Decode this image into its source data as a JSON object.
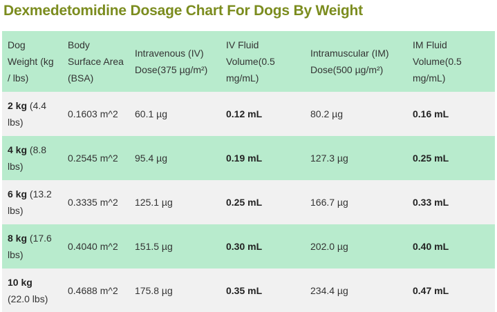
{
  "title": "Dexmedetomidine Dosage Chart For Dogs By Weight",
  "table": {
    "headers": [
      "Dog Weight (kg / lbs)",
      "Body Surface Area (BSA)",
      "Intravenous (IV) Dose(375 µg/m²)",
      "IV Fluid Volume(0.5 mg/mL)",
      "Intramuscular (IM) Dose(500 µg/m²)",
      "IM Fluid Volume(0.5 mg/mL)"
    ],
    "rows": [
      {
        "weight_kg": "2 kg",
        "weight_lbs": "(4.4 lbs)",
        "bsa": "0.1603 m^2",
        "iv_dose": "60.1 µg",
        "iv_volume": "0.12 mL",
        "im_dose": "80.2 µg",
        "im_volume": "0.16 mL"
      },
      {
        "weight_kg": "4 kg",
        "weight_lbs": "(8.8 lbs)",
        "bsa": "0.2545 m^2",
        "iv_dose": "95.4 µg",
        "iv_volume": "0.19 mL",
        "im_dose": "127.3 µg",
        "im_volume": "0.25 mL"
      },
      {
        "weight_kg": "6 kg",
        "weight_lbs": "(13.2 lbs)",
        "bsa": "0.3335 m^2",
        "iv_dose": "125.1 µg",
        "iv_volume": "0.25 mL",
        "im_dose": "166.7 µg",
        "im_volume": "0.33 mL"
      },
      {
        "weight_kg": "8 kg",
        "weight_lbs": "(17.6 lbs)",
        "bsa": "0.4040 m^2",
        "iv_dose": "151.5 µg",
        "iv_volume": "0.30 mL",
        "im_dose": "202.0 µg",
        "im_volume": "0.40 mL"
      },
      {
        "weight_kg": "10 kg",
        "weight_lbs": "(22.0 lbs)",
        "bsa": "0.4688 m^2",
        "iv_dose": "175.8 µg",
        "iv_volume": "0.35 mL",
        "im_dose": "234.4 µg",
        "im_volume": "0.47 mL"
      }
    ]
  }
}
